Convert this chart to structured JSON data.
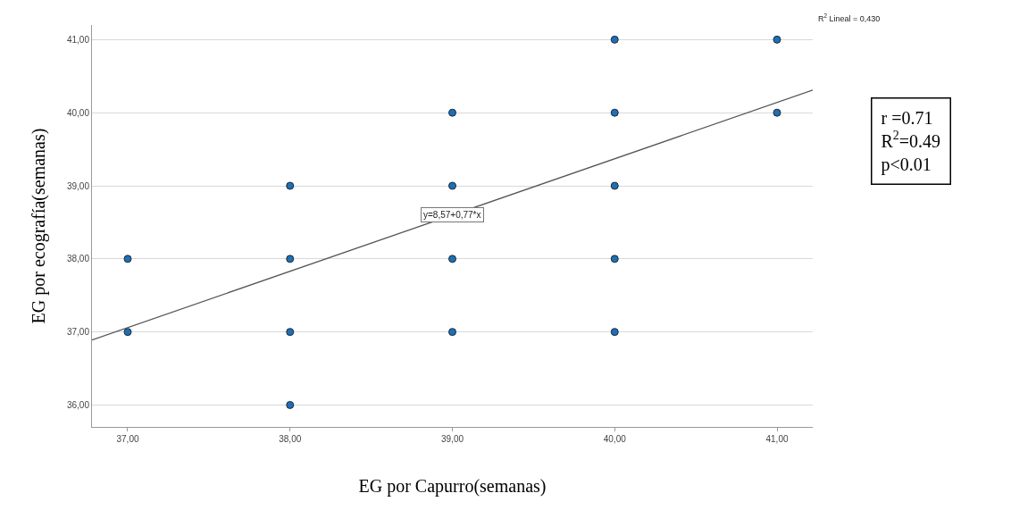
{
  "chart_data": {
    "type": "scatter",
    "xlabel": "EG por Capurro(semanas)",
    "ylabel": "EG por ecografía(semanas)",
    "series": [
      {
        "color": "#1f6fb4",
        "marker": "circle",
        "x": [
          37,
          37,
          38,
          38,
          38,
          38,
          39,
          39,
          39,
          39,
          40,
          40,
          40,
          40,
          40,
          41,
          41
        ],
        "values": [
          38,
          37,
          39,
          38,
          37,
          36,
          40,
          39,
          38,
          37,
          41,
          40,
          39,
          38,
          37,
          41,
          40
        ]
      },
      {
        "type": "line",
        "color": "#555555",
        "marker": "none",
        "line_style": "solid",
        "x": [
          36.78,
          41.22
        ],
        "values": [
          36.89,
          40.31
        ]
      }
    ],
    "xlim": [
      36.78,
      41.22
    ],
    "ylim": [
      35.7,
      41.2
    ],
    "xticks": [
      {
        "value": 37,
        "label": "37,00"
      },
      {
        "value": 38,
        "label": "38,00"
      },
      {
        "value": 39,
        "label": "39,00"
      },
      {
        "value": 40,
        "label": "40,00"
      },
      {
        "value": 41,
        "label": "41,00"
      }
    ],
    "yticks": [
      {
        "value": 36,
        "label": "36,00"
      },
      {
        "value": 37,
        "label": "37,00"
      },
      {
        "value": 38,
        "label": "38,00"
      },
      {
        "value": 39,
        "label": "39,00"
      },
      {
        "value": 40,
        "label": "40,00"
      },
      {
        "value": 41,
        "label": "41,00"
      }
    ],
    "grid": "y",
    "annotations": [
      {
        "text": "y=8,57+0,77*x",
        "x": 39.0,
        "y": 38.6
      },
      "R$^{2}$ Lineal = 0,430",
      "r =0.71\nR$^{2}$=0.49\np<0.01"
    ]
  }
}
